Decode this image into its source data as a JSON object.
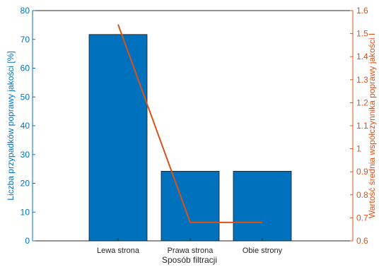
{
  "chart_data": {
    "type": "bar",
    "categories": [
      "Lewa strona",
      "Prawa strona",
      "Obie strony"
    ],
    "xlabel": "Sposób filtracji",
    "ylabel_left": "Liczba przypadków poprawy jakości [%]",
    "ylabel_right": "Wartość średnia współczynnika poprawy jakości I",
    "ylim_left": [
      0,
      80
    ],
    "ylim_right": [
      0.6,
      1.6
    ],
    "yticks_left": [
      "0",
      "10",
      "20",
      "30",
      "40",
      "50",
      "60",
      "70",
      "80"
    ],
    "yticks_right": [
      "0.6",
      "0.7",
      "0.8",
      "0.9",
      "1",
      "1.1",
      "1.2",
      "1.3",
      "1.4",
      "1.5",
      "1.6"
    ],
    "grid": false,
    "legend": "none",
    "series": [
      {
        "axis": "left",
        "type": "bar",
        "values": [
          71.7,
          24.2,
          24.2
        ],
        "color": "#0072BD"
      },
      {
        "axis": "right",
        "type": "line",
        "values": [
          1.54,
          0.68,
          0.68
        ],
        "color": "#D95319"
      }
    ]
  }
}
